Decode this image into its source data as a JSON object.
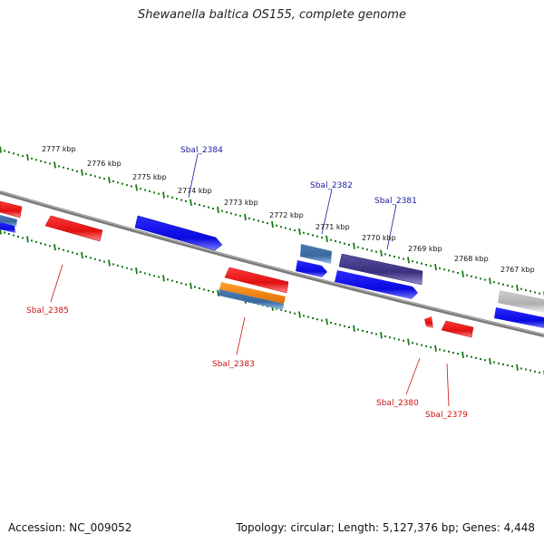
{
  "title": "Shewanella baltica OS155, complete genome",
  "footer": {
    "accession": "Accession: NC_009052",
    "summary": "Topology: circular; Length: 5,127,376 bp; Genes: 4,448"
  },
  "colors": {
    "forward_gene": "#0a12e8",
    "reverse_gene": "#e81010",
    "forward_label": "#1a1aa0",
    "reverse_label": "#cc1111",
    "tick": "#1a7a1a",
    "backbone": "#7a7a7a"
  },
  "scale": {
    "unit": "kbp",
    "labels": [
      "2777 kbp",
      "2776 kbp",
      "2775 kbp",
      "2774 kbp",
      "2773 kbp",
      "2772 kbp",
      "2771 kbp",
      "2770 kbp",
      "2769 kbp",
      "2768 kbp",
      "2767 kbp"
    ]
  },
  "genes": {
    "forward": [
      "Sbal_2384",
      "Sbal_2382",
      "Sbal_2381"
    ],
    "reverse": [
      "Sbal_2385",
      "Sbal_2383",
      "Sbal_2380",
      "Sbal_2379"
    ]
  }
}
